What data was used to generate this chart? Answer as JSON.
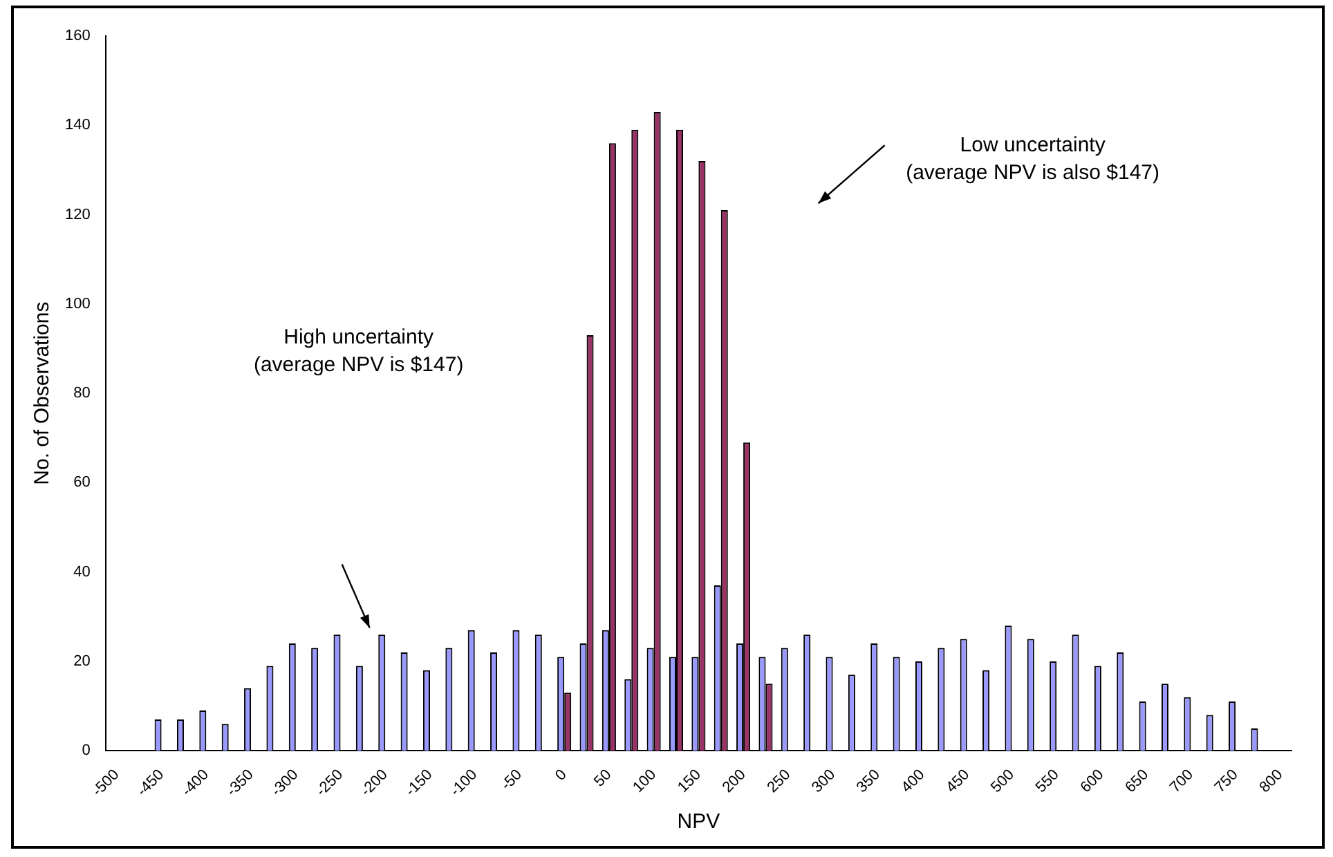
{
  "chart_data": {
    "type": "bar",
    "xlabel": "NPV",
    "ylabel": "No. of Observations",
    "categories": [
      "-500",
      null,
      "-450",
      null,
      "-400",
      null,
      "-350",
      null,
      "-300",
      null,
      "-250",
      null,
      "-200",
      null,
      "-150",
      null,
      "-100",
      null,
      "-50",
      null,
      "0",
      null,
      "50",
      null,
      "100",
      null,
      "150",
      null,
      "200",
      null,
      "250",
      null,
      "300",
      null,
      "350",
      null,
      "400",
      null,
      "450",
      null,
      "500",
      null,
      "550",
      null,
      "600",
      null,
      "650",
      null,
      "700",
      null,
      "750",
      null,
      "800"
    ],
    "series": [
      {
        "color": "#9999ff",
        "values": [
          null,
          null,
          7,
          7,
          9,
          6,
          14,
          19,
          24,
          23,
          26,
          19,
          26,
          22,
          18,
          23,
          27,
          22,
          27,
          26,
          21,
          24,
          27,
          16,
          23,
          21,
          21,
          37,
          24,
          21,
          23,
          26,
          21,
          17,
          24,
          21,
          20,
          23,
          25,
          18,
          28,
          25,
          20,
          26,
          19,
          22,
          11,
          15,
          12,
          8,
          11,
          5,
          null
        ]
      },
      {
        "color": "#993366",
        "values": [
          null,
          null,
          null,
          null,
          null,
          null,
          null,
          null,
          null,
          null,
          null,
          null,
          null,
          null,
          null,
          null,
          null,
          null,
          null,
          null,
          13,
          93,
          136,
          139,
          143,
          139,
          132,
          121,
          69,
          15,
          null,
          null,
          null,
          null,
          null,
          null,
          null,
          null,
          null,
          null,
          null,
          null,
          null,
          null,
          null,
          null,
          null,
          null,
          null,
          null,
          null,
          null,
          null
        ]
      }
    ],
    "ylim": [
      0,
      160
    ],
    "yticks": [
      0,
      20,
      40,
      60,
      80,
      100,
      120,
      140,
      160
    ],
    "grid": false,
    "legend": false,
    "annotations": [
      "High uncertainty\n(average NPV is $147)",
      "Low uncertainty\n(average NPV is also $147)"
    ]
  }
}
